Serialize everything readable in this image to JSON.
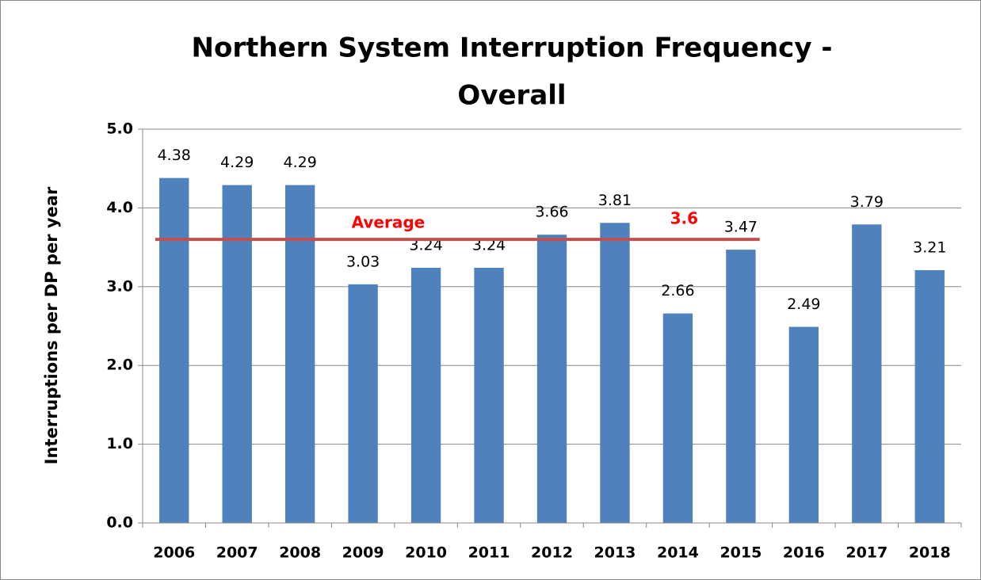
{
  "chart_data": {
    "type": "bar",
    "title": [
      "Northern System Interruption Frequency -",
      "Overall"
    ],
    "y_label": "Interruptions  per  DP  per  year",
    "categories": [
      "2006",
      "2007",
      "2008",
      "2009",
      "2010",
      "2011",
      "2012",
      "2013",
      "2014",
      "2015",
      "2016",
      "2017",
      "2018"
    ],
    "values": [
      4.38,
      4.29,
      4.29,
      3.03,
      3.24,
      3.24,
      3.66,
      3.81,
      2.66,
      3.47,
      2.49,
      3.79,
      3.21
    ],
    "color": "#4f81bd",
    "ylim": [
      0,
      5
    ],
    "yticks": [
      {
        "value": 0,
        "label": "0.0"
      },
      {
        "value": 1,
        "label": "1.0"
      },
      {
        "value": 2,
        "label": "2.0"
      },
      {
        "value": 3,
        "label": "3.0"
      },
      {
        "value": 4,
        "label": "4.0"
      },
      {
        "value": 5,
        "label": "5.0"
      }
    ],
    "grid": true,
    "average": {
      "label": "Average",
      "value": 3.6,
      "color": "#c0504d",
      "label_color": "#ff0000"
    }
  }
}
